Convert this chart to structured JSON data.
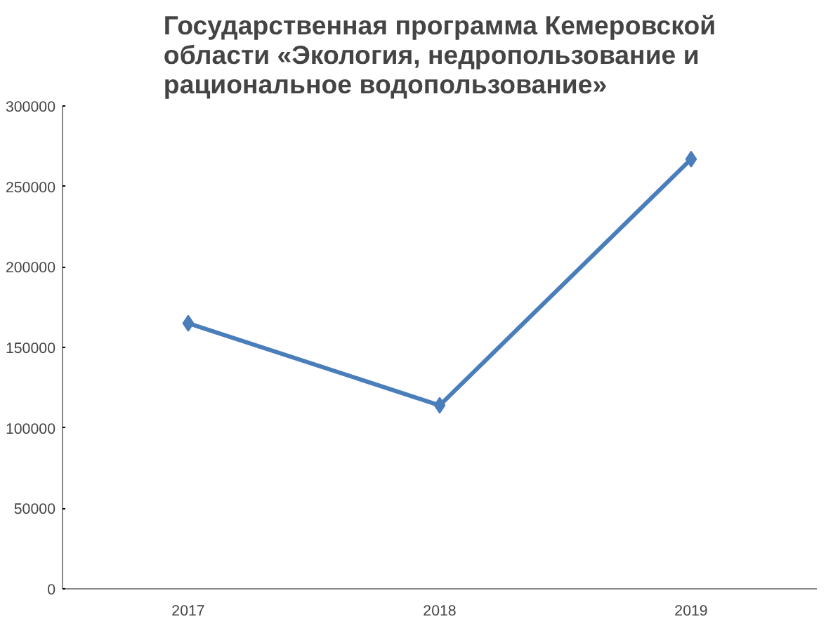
{
  "chart_data": {
    "type": "line",
    "title": "Государственная программа Кемеровской\nобласти «Экология, недропользование и\nрациональное водопользование»",
    "categories": [
      "2017",
      "2018",
      "2019"
    ],
    "series": [
      {
        "color": "#4a7ebb",
        "values": [
          165000,
          114000,
          267000
        ]
      }
    ],
    "ylim": [
      0,
      300000
    ],
    "yticks": [
      0,
      50000,
      100000,
      150000,
      200000,
      250000,
      300000
    ],
    "marker": "diamond",
    "grid": false
  }
}
